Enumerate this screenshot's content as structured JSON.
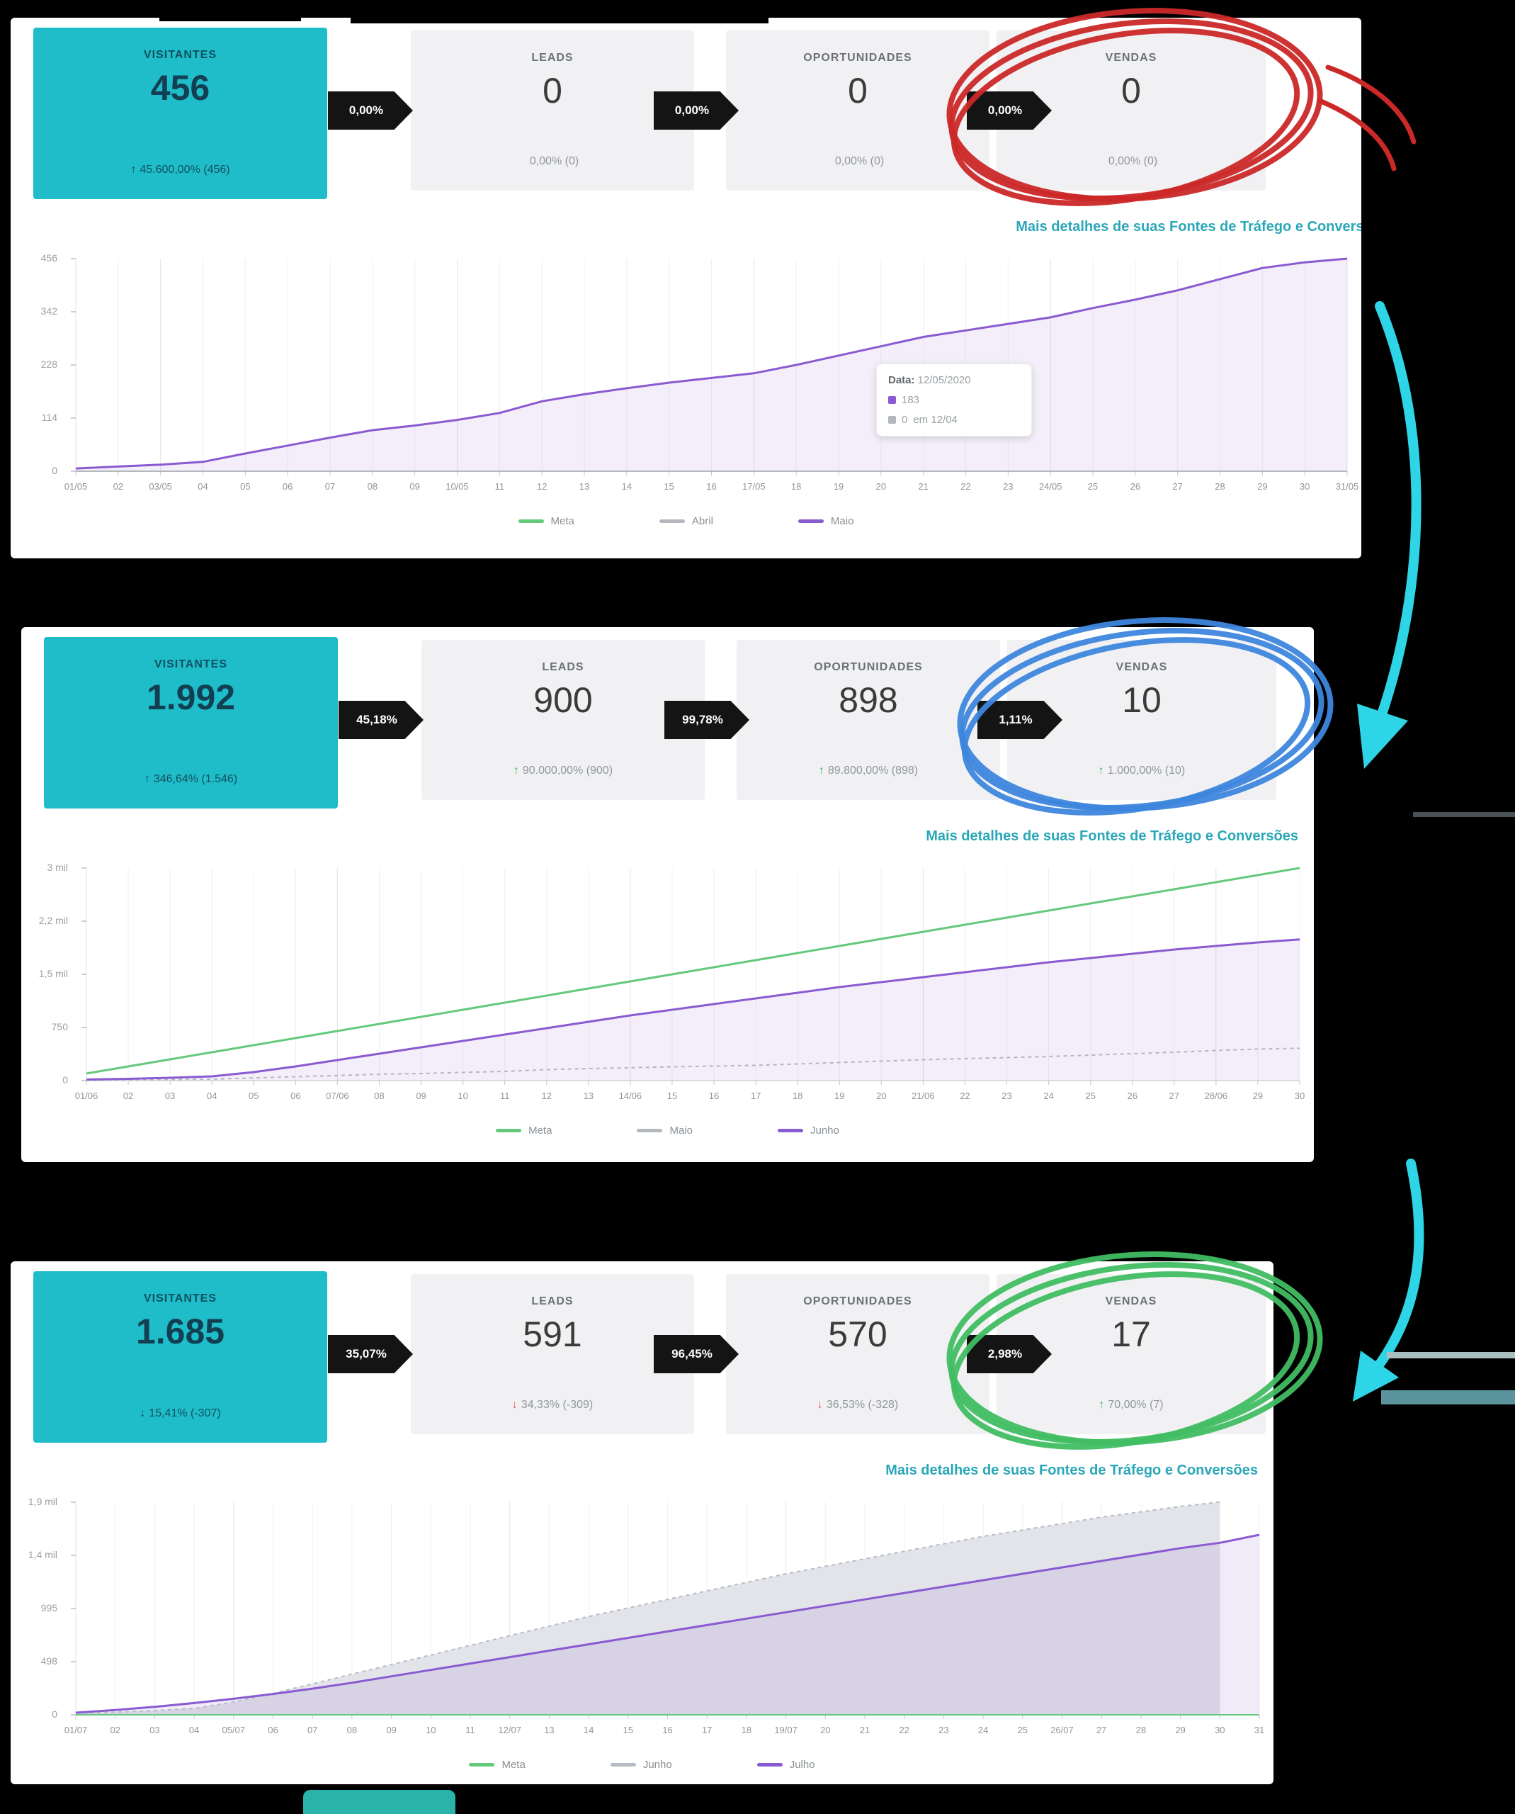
{
  "link_label": "Mais detalhes de suas Fontes de Tráfego e Conversões",
  "tooltip": {
    "label": "Data:",
    "date": "12/05/2020",
    "v1": "183",
    "v2": "0",
    "v2_note": "em 12/04"
  },
  "decor": {
    "arrow_color": "#2ed5e6",
    "bar_light": "#a9bfc0",
    "bar_dark": "#5b949c",
    "gray_line": "#6f7d82",
    "pill_color": "#2ab3a8",
    "highlight_card_color": "#1fbdc9"
  },
  "panels": [
    {
      "name": "maio",
      "circle_color": "#cb2828",
      "cards": [
        {
          "label": "VISITANTES",
          "value": "456",
          "arrow": "↑",
          "delta": "45.600,00% (456)",
          "tone": "dark"
        },
        {
          "label": "LEADS",
          "value": "0",
          "arrow": "",
          "delta": "0,00% (0)",
          "tone": "gray"
        },
        {
          "label": "OPORTUNIDADES",
          "value": "0",
          "arrow": "",
          "delta": "0,00% (0)",
          "tone": "gray"
        },
        {
          "label": "VENDAS",
          "value": "0",
          "arrow": "",
          "delta": "0,00% (0)",
          "tone": "gray"
        }
      ],
      "badges": [
        "0,00%",
        "0,00%",
        "0,00%"
      ],
      "chart_data": {
        "type": "area",
        "ymax": 456,
        "y_tick_labels": [
          "456",
          "342",
          "228",
          "114",
          "0"
        ],
        "x": [
          "01/05",
          "02",
          "03/05",
          "04",
          "05",
          "06",
          "07",
          "08",
          "09",
          "10/05",
          "11",
          "12",
          "13",
          "14",
          "15",
          "16",
          "17/05",
          "18",
          "19",
          "20",
          "21",
          "22",
          "23",
          "24/05",
          "25",
          "26",
          "27",
          "28",
          "29",
          "30",
          "31/05"
        ],
        "series": [
          {
            "name": "Meta",
            "color": "#64c97b",
            "width": 2,
            "values": [
              0,
              0,
              0,
              0,
              0,
              0,
              0,
              0,
              0,
              0,
              0,
              0,
              0,
              0,
              0,
              0,
              0,
              0,
              0,
              0,
              0,
              0,
              0,
              0,
              0,
              0,
              0,
              0,
              0,
              0,
              0
            ]
          },
          {
            "name": "Abril",
            "color": "#b4b7bc",
            "width": 2,
            "values": [
              0,
              0,
              0,
              0,
              0,
              0,
              0,
              0,
              0,
              0,
              0,
              0,
              0,
              0,
              0,
              0,
              0,
              0,
              0,
              0,
              0,
              0,
              0,
              0,
              0,
              0,
              0,
              0,
              0,
              0,
              0
            ]
          },
          {
            "name": "Maio",
            "color": "#8a5ad1",
            "width": 3,
            "fill": "rgba(138,90,209,0.10)",
            "values": [
              6,
              10,
              14,
              20,
              38,
              55,
              72,
              88,
              98,
              110,
              125,
              150,
              165,
              178,
              190,
              200,
              210,
              228,
              248,
              268,
              288,
              302,
              316,
              330,
              350,
              368,
              388,
              412,
              436,
              448,
              456
            ]
          }
        ],
        "legend_position": "bottom",
        "grid": "vertical-daily"
      }
    },
    {
      "name": "junho",
      "circle_color": "#3d86dd",
      "cards": [
        {
          "label": "VISITANTES",
          "value": "1.992",
          "arrow": "↑",
          "delta": "346,64% (1.546)",
          "tone": "dark"
        },
        {
          "label": "LEADS",
          "value": "900",
          "arrow": "↑",
          "delta": "90.000,00% (900)",
          "tone": "green"
        },
        {
          "label": "OPORTUNIDADES",
          "value": "898",
          "arrow": "↑",
          "delta": "89.800,00% (898)",
          "tone": "green"
        },
        {
          "label": "VENDAS",
          "value": "10",
          "arrow": "↑",
          "delta": "1.000,00% (10)",
          "tone": "green"
        }
      ],
      "badges": [
        "45,18%",
        "99,78%",
        "1,11%"
      ],
      "chart_data": {
        "type": "area",
        "ymax": 3000,
        "y_tick_labels": [
          "3 mil",
          "2,2 mil",
          "1,5 mil",
          "750",
          "0"
        ],
        "x": [
          "01/06",
          "02",
          "03",
          "04",
          "05",
          "06",
          "07/06",
          "08",
          "09",
          "10",
          "11",
          "12",
          "13",
          "14/06",
          "15",
          "16",
          "17",
          "18",
          "19",
          "20",
          "21/06",
          "22",
          "23",
          "24",
          "25",
          "26",
          "27",
          "28/06",
          "29",
          "30"
        ],
        "series": [
          {
            "name": "Meta",
            "color": "#64c97b",
            "width": 3,
            "values": [
              100,
              200,
              300,
              400,
              500,
              600,
              700,
              800,
              900,
              1000,
              1100,
              1200,
              1300,
              1400,
              1500,
              1600,
              1700,
              1800,
              1900,
              2000,
              2100,
              2200,
              2300,
              2400,
              2500,
              2600,
              2700,
              2800,
              2900,
              3000
            ]
          },
          {
            "name": "Maio",
            "color": "#b4b7bc",
            "width": 2,
            "dash": true,
            "values": [
              6,
              10,
              14,
              20,
              38,
              55,
              72,
              90,
              100,
              115,
              130,
              155,
              170,
              182,
              195,
              205,
              215,
              235,
              255,
              275,
              295,
              310,
              325,
              340,
              360,
              380,
              400,
              425,
              445,
              456
            ]
          },
          {
            "name": "Junho",
            "color": "#8a5ad1",
            "width": 3,
            "fill": "rgba(138,90,209,0.10)",
            "values": [
              15,
              25,
              40,
              60,
              120,
              200,
              290,
              380,
              470,
              560,
              650,
              740,
              830,
              920,
              1000,
              1080,
              1160,
              1240,
              1320,
              1390,
              1460,
              1530,
              1600,
              1670,
              1730,
              1790,
              1850,
              1900,
              1950,
              1992
            ]
          }
        ],
        "legend_position": "bottom",
        "grid": "vertical-daily"
      }
    },
    {
      "name": "julho",
      "circle_color": "#41bd63",
      "cards": [
        {
          "label": "VISITANTES",
          "value": "1.685",
          "arrow": "↓",
          "delta": "15,41% (-307)",
          "tone": "dark"
        },
        {
          "label": "LEADS",
          "value": "591",
          "arrow": "↓",
          "delta": "34,33% (-309)",
          "tone": "red"
        },
        {
          "label": "OPORTUNIDADES",
          "value": "570",
          "arrow": "↓",
          "delta": "36,53% (-328)",
          "tone": "red"
        },
        {
          "label": "VENDAS",
          "value": "17",
          "arrow": "↑",
          "delta": "70,00% (7)",
          "tone": "green"
        }
      ],
      "badges": [
        "35,07%",
        "96,45%",
        "2,98%"
      ],
      "chart_data": {
        "type": "area",
        "ymax": 1990,
        "y_tick_labels": [
          "1,9 mil",
          "1,4 mil",
          "995",
          "498",
          "0"
        ],
        "x": [
          "01/07",
          "02",
          "03",
          "04",
          "05/07",
          "06",
          "07",
          "08",
          "09",
          "10",
          "11",
          "12/07",
          "13",
          "14",
          "15",
          "16",
          "17",
          "18",
          "19/07",
          "20",
          "21",
          "22",
          "23",
          "24",
          "25",
          "26/07",
          "27",
          "28",
          "29",
          "30",
          "31"
        ],
        "series": [
          {
            "name": "Meta",
            "color": "#64c97b",
            "width": 2,
            "values": [
              0,
              0,
              0,
              0,
              0,
              0,
              0,
              0,
              0,
              0,
              0,
              0,
              0,
              0,
              0,
              0,
              0,
              0,
              0,
              0,
              0,
              0,
              0,
              0,
              0,
              0,
              0,
              0,
              0,
              0,
              0
            ]
          },
          {
            "name": "Junho",
            "color": "#b7bbc4",
            "width": 2,
            "dash": true,
            "fill": "#e2e4e9",
            "values": [
              15,
              25,
              40,
              60,
              120,
              200,
              290,
              380,
              470,
              560,
              650,
              740,
              830,
              920,
              1000,
              1080,
              1160,
              1240,
              1320,
              1390,
              1460,
              1530,
              1600,
              1670,
              1730,
              1790,
              1850,
              1900,
              1950,
              1992,
              null
            ]
          },
          {
            "name": "Julho",
            "color": "#8a5ad1",
            "width": 3,
            "fill": "rgba(138,90,209,0.12)",
            "values": [
              20,
              45,
              75,
              110,
              150,
              195,
              245,
              300,
              360,
              420,
              480,
              540,
              600,
              660,
              720,
              780,
              840,
              900,
              960,
              1020,
              1080,
              1140,
              1200,
              1260,
              1320,
              1380,
              1440,
              1500,
              1560,
              1610,
              1685
            ]
          }
        ],
        "legend_position": "bottom",
        "grid": "vertical-daily"
      }
    }
  ]
}
